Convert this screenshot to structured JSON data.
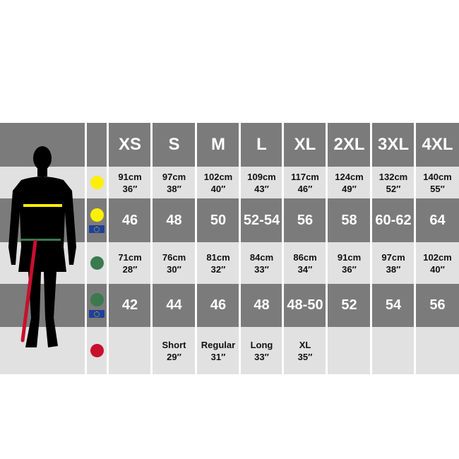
{
  "sizes": [
    "XS",
    "S",
    "M",
    "L",
    "XL",
    "2XL",
    "3XL",
    "4XL"
  ],
  "colors": {
    "chest": "#ffef00",
    "waist": "#3a7a4e",
    "inseam": "#c8102e",
    "dark_row": "#7b7b7b",
    "light_row": "#e1e1e1"
  },
  "rows": [
    {
      "icon": "chest-yellow-dot",
      "eu": false,
      "values": [
        [
          "91cm",
          "36″"
        ],
        [
          "97cm",
          "38″"
        ],
        [
          "102cm",
          "40″"
        ],
        [
          "109cm",
          "43″"
        ],
        [
          "117cm",
          "46″"
        ],
        [
          "124cm",
          "49″"
        ],
        [
          "132cm",
          "52″"
        ],
        [
          "140cm",
          "55″"
        ]
      ]
    },
    {
      "icon": "chest-yellow-dot",
      "eu": true,
      "values": [
        "46",
        "48",
        "50",
        "52-54",
        "56",
        "58",
        "60-62",
        "64"
      ]
    },
    {
      "icon": "waist-green-dot",
      "eu": false,
      "values": [
        [
          "71cm",
          "28″"
        ],
        [
          "76cm",
          "30″"
        ],
        [
          "81cm",
          "32″"
        ],
        [
          "84cm",
          "33″"
        ],
        [
          "86cm",
          "34″"
        ],
        [
          "91cm",
          "36″"
        ],
        [
          "97cm",
          "38″"
        ],
        [
          "102cm",
          "40″"
        ]
      ]
    },
    {
      "icon": "waist-green-dot",
      "eu": true,
      "values": [
        "42",
        "44",
        "46",
        "48",
        "48-50",
        "52",
        "54",
        "56"
      ]
    },
    {
      "icon": "inseam-red-dot",
      "eu": false,
      "values": [
        [
          "",
          ""
        ],
        [
          "Short",
          "29″"
        ],
        [
          "Regular",
          "31″"
        ],
        [
          "Long",
          "33″"
        ],
        [
          "XL",
          "35″"
        ],
        [
          "",
          ""
        ],
        [
          "",
          ""
        ],
        [
          "",
          ""
        ]
      ]
    }
  ]
}
